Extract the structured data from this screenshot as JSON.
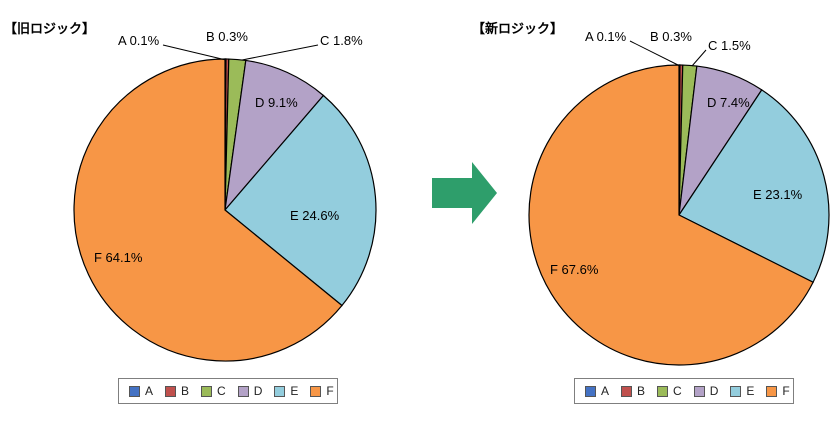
{
  "chart_data": [
    {
      "type": "pie",
      "title": "【旧ロジック】",
      "categories": [
        "A",
        "B",
        "C",
        "D",
        "E",
        "F"
      ],
      "values": [
        0.1,
        0.3,
        1.8,
        9.1,
        24.6,
        64.1
      ],
      "labels": [
        "A 0.1%",
        "B 0.3%",
        "C 1.8%",
        "D 9.1%",
        "E 24.6%",
        "F 64.1%"
      ],
      "legend": "bottom"
    },
    {
      "type": "pie",
      "title": "【新ロジック】",
      "categories": [
        "A",
        "B",
        "C",
        "D",
        "E",
        "F"
      ],
      "values": [
        0.1,
        0.3,
        1.5,
        7.4,
        23.1,
        67.6
      ],
      "labels": [
        "A 0.1%",
        "B 0.3%",
        "C 1.5%",
        "D 7.4%",
        "E 23.1%",
        "F 67.6%"
      ],
      "legend": "bottom"
    }
  ],
  "colors": {
    "A": "#4472c4",
    "B": "#c0504d",
    "C": "#9bbb59",
    "D": "#b3a2c7",
    "E": "#93cddd",
    "F": "#f79646",
    "arrow": "#2e9e6b"
  },
  "arrow_icon": "right-arrow"
}
